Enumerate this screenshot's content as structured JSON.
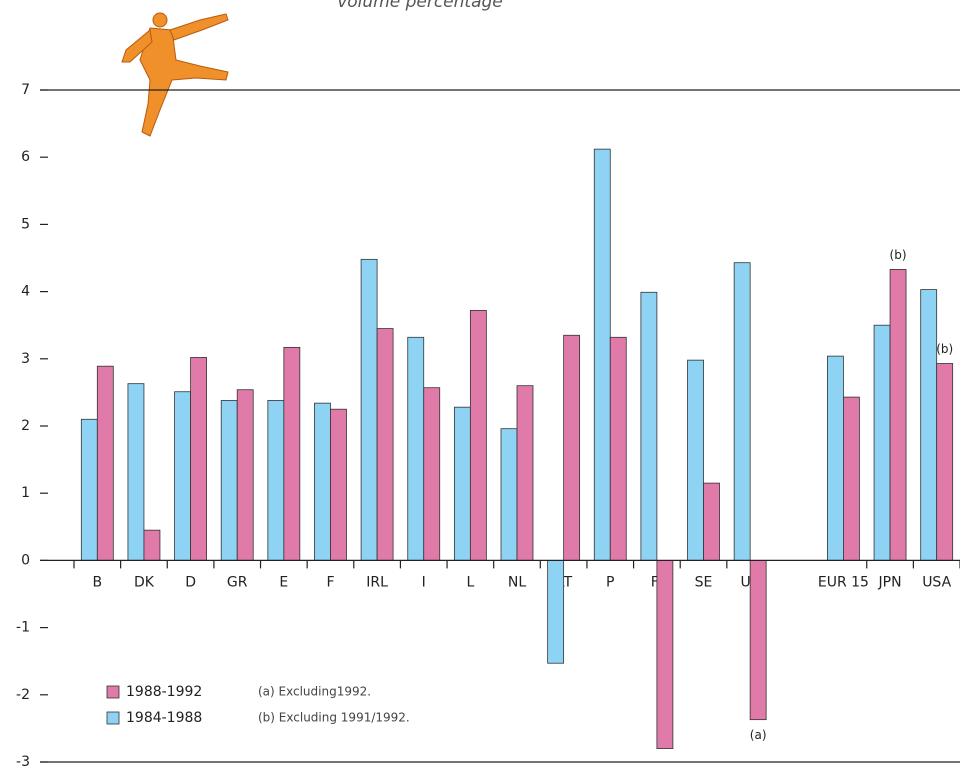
{
  "chart_data": {
    "type": "bar",
    "subtitle": "volume percentage",
    "categories": [
      "B",
      "DK",
      "D",
      "GR",
      "E",
      "F",
      "IRL",
      "I",
      "L",
      "NL",
      "AT",
      "P",
      "FI",
      "SE",
      "UK",
      null,
      "EUR 15",
      "JPN",
      "USA"
    ],
    "series": [
      {
        "name": "1984-1988",
        "color": "#8ed3f3",
        "values": [
          2.1,
          2.63,
          2.51,
          2.38,
          2.38,
          2.34,
          4.48,
          3.32,
          2.28,
          1.96,
          -1.53,
          6.12,
          3.99,
          2.98,
          4.43,
          null,
          3.04,
          3.5,
          4.03
        ]
      },
      {
        "name": "1988-1992",
        "color": "#e07aa8",
        "values": [
          2.89,
          0.45,
          3.02,
          2.54,
          3.17,
          2.25,
          3.45,
          2.57,
          3.72,
          2.6,
          3.35,
          3.32,
          -2.8,
          1.15,
          -2.37,
          null,
          2.43,
          4.33,
          2.93
        ]
      }
    ],
    "ylim": [
      -3,
      7
    ],
    "yticks": [
      -3,
      -2,
      -1,
      0,
      1,
      2,
      3,
      4,
      5,
      6,
      7
    ],
    "grid": false,
    "annotations": [
      {
        "text": "(b)",
        "category": "JPN",
        "series": "1988-1992"
      },
      {
        "text": "(b)",
        "category": "USA",
        "series": "1988-1992"
      },
      {
        "text": "(a)",
        "category": "UK",
        "series": "1988-1992"
      }
    ],
    "footnotes": [
      "(a) Excluding1992.",
      "(b) Excluding 1991/1992."
    ]
  }
}
